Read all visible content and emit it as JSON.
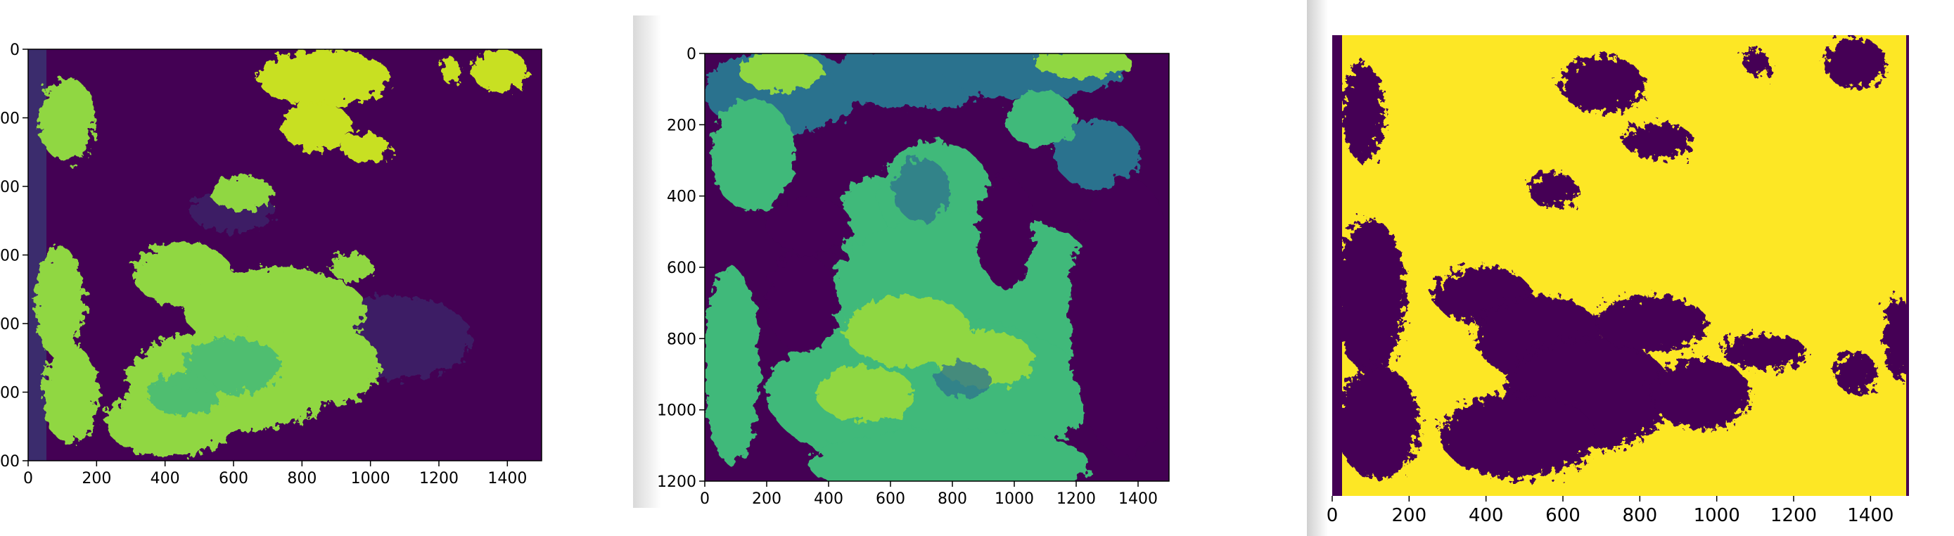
{
  "colors": {
    "low": "#440154",
    "low_alt": "#3b2c6d",
    "teal": "#2c728e",
    "green": "#3fb97a",
    "lime": "#90d743",
    "yellow_green": "#c8e020",
    "yellow": "#fde725"
  },
  "chart_data": [
    {
      "type": "heatmap",
      "title": "",
      "xlabel": "",
      "ylabel": "",
      "xlim": [
        0,
        1500
      ],
      "ylim": [
        1200,
        0
      ],
      "x_ticks": [
        "0",
        "200",
        "400",
        "600",
        "800",
        "1000",
        "1200",
        "1400"
      ],
      "y_ticks": [
        "0",
        "00",
        "00",
        "00",
        "00",
        "00",
        "00"
      ],
      "colormap": "viridis"
    },
    {
      "type": "heatmap",
      "title": "",
      "xlabel": "",
      "ylabel": "",
      "xlim": [
        0,
        1500
      ],
      "ylim": [
        1200,
        0
      ],
      "x_ticks": [
        "0",
        "200",
        "400",
        "600",
        "800",
        "1000",
        "1200",
        "1400"
      ],
      "y_ticks": [
        "0",
        "200",
        "400",
        "600",
        "800",
        "1000",
        "1200"
      ],
      "colormap": "viridis"
    },
    {
      "type": "heatmap",
      "title": "",
      "xlabel": "",
      "ylabel": "",
      "xlim": [
        0,
        1500
      ],
      "ylim": [
        1200,
        0
      ],
      "x_ticks": [
        "0",
        "200",
        "400",
        "600",
        "800",
        "1000",
        "1200",
        "1400"
      ],
      "y_ticks": [],
      "colormap": "viridis-binary"
    }
  ]
}
